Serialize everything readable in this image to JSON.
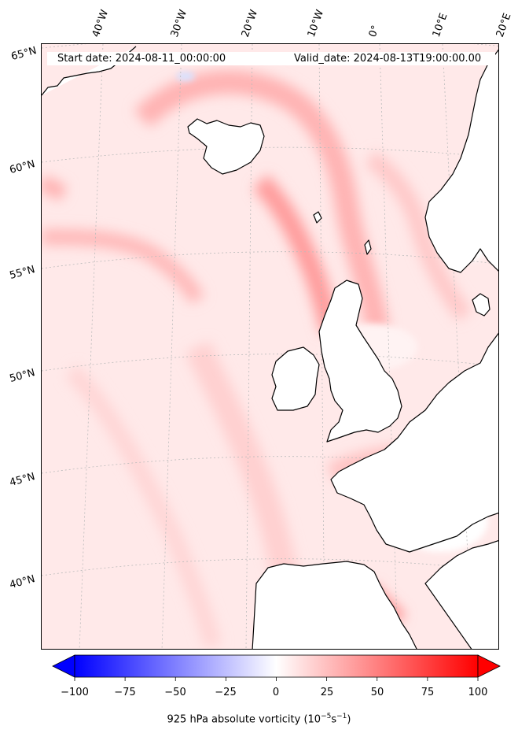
{
  "map": {
    "start_label": "Start date: 2024-08-11_00:00:00",
    "valid_label": "Valid_date: 2024-08-13T19:00:00.00",
    "longitude_labels": [
      "40°W",
      "30°W",
      "20°W",
      "10°W",
      "0°",
      "10°E",
      "20°E"
    ],
    "latitude_labels": [
      "65°N",
      "60°N",
      "55°N",
      "50°N",
      "45°N",
      "40°N"
    ],
    "field": "925 hPa absolute vorticity",
    "colors": {
      "negative": "#0000ff",
      "zero": "#ffffff",
      "positive": "#ff0000",
      "coast": "#000000",
      "graticule": "#bbbbbb"
    }
  },
  "colorbar": {
    "label_main": "925 hPa absolute vorticity (10",
    "label_exp1": "−5",
    "label_unit": "s",
    "label_exp2": "−1",
    "label_close": ")",
    "min": -100,
    "max": 100,
    "ticks": [
      "−100",
      "−75",
      "−50",
      "−25",
      "0",
      "25",
      "50",
      "75",
      "100"
    ],
    "extend": "both"
  }
}
